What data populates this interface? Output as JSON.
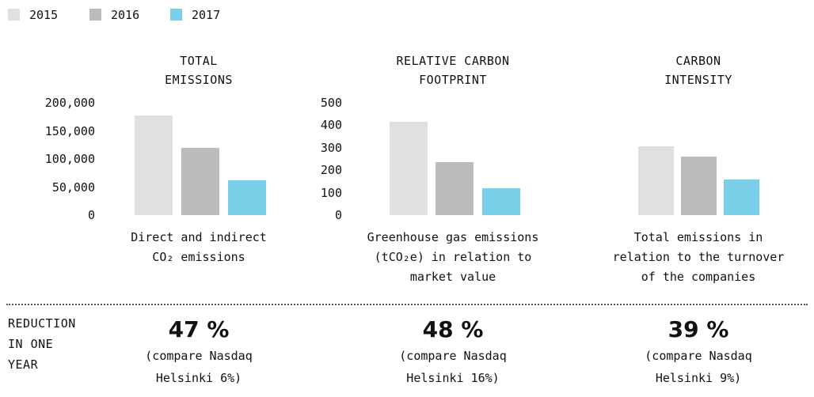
{
  "legend": {
    "items": [
      {
        "name": "2015",
        "color": "#e0e0e0"
      },
      {
        "name": "2016",
        "color": "#bdbbb9"
      },
      {
        "name": "2017",
        "color": "#79cfe8"
      }
    ]
  },
  "chart_data": [
    {
      "type": "bar",
      "title": "TOTAL EMISSIONS",
      "caption": "Direct and indirect CO₂ emissions",
      "values": [
        177000,
        120000,
        62000
      ],
      "ylim": [
        0,
        200000
      ],
      "yticks": [
        {
          "value": 0,
          "label": "0"
        },
        {
          "value": 50000,
          "label": "50,000"
        },
        {
          "value": 100000,
          "label": "100,000"
        },
        {
          "value": 150000,
          "label": "150,000"
        },
        {
          "value": 200000,
          "label": "200,000"
        }
      ]
    },
    {
      "type": "bar",
      "title": "RELATIVE CARBON FOOTPRINT",
      "caption": "Greenhouse gas emissions (tCO₂e) in relation to market value",
      "values": [
        415,
        236,
        120
      ],
      "ylim": [
        0,
        500
      ],
      "yticks": [
        0,
        100,
        200,
        300,
        400,
        500
      ]
    },
    {
      "type": "bar",
      "title": "CARBON INTENSITY",
      "caption": "Total emissions in relation to the turnover of the companies",
      "values": [
        306,
        260,
        158
      ],
      "ylim": [
        0,
        500
      ]
    }
  ],
  "reduction": {
    "label": "REDUCTION IN ONE YEAR",
    "items": [
      {
        "value": 47,
        "value_label": "47 %",
        "note": "(compare Nasdaq Helsinki 6%)"
      },
      {
        "value": 48,
        "value_label": "48 %",
        "note": "(compare Nasdaq Helsinki 16%)"
      },
      {
        "value": 39,
        "value_label": "39 %",
        "note": "(compare Nasdaq Helsinki 9%)"
      }
    ]
  }
}
